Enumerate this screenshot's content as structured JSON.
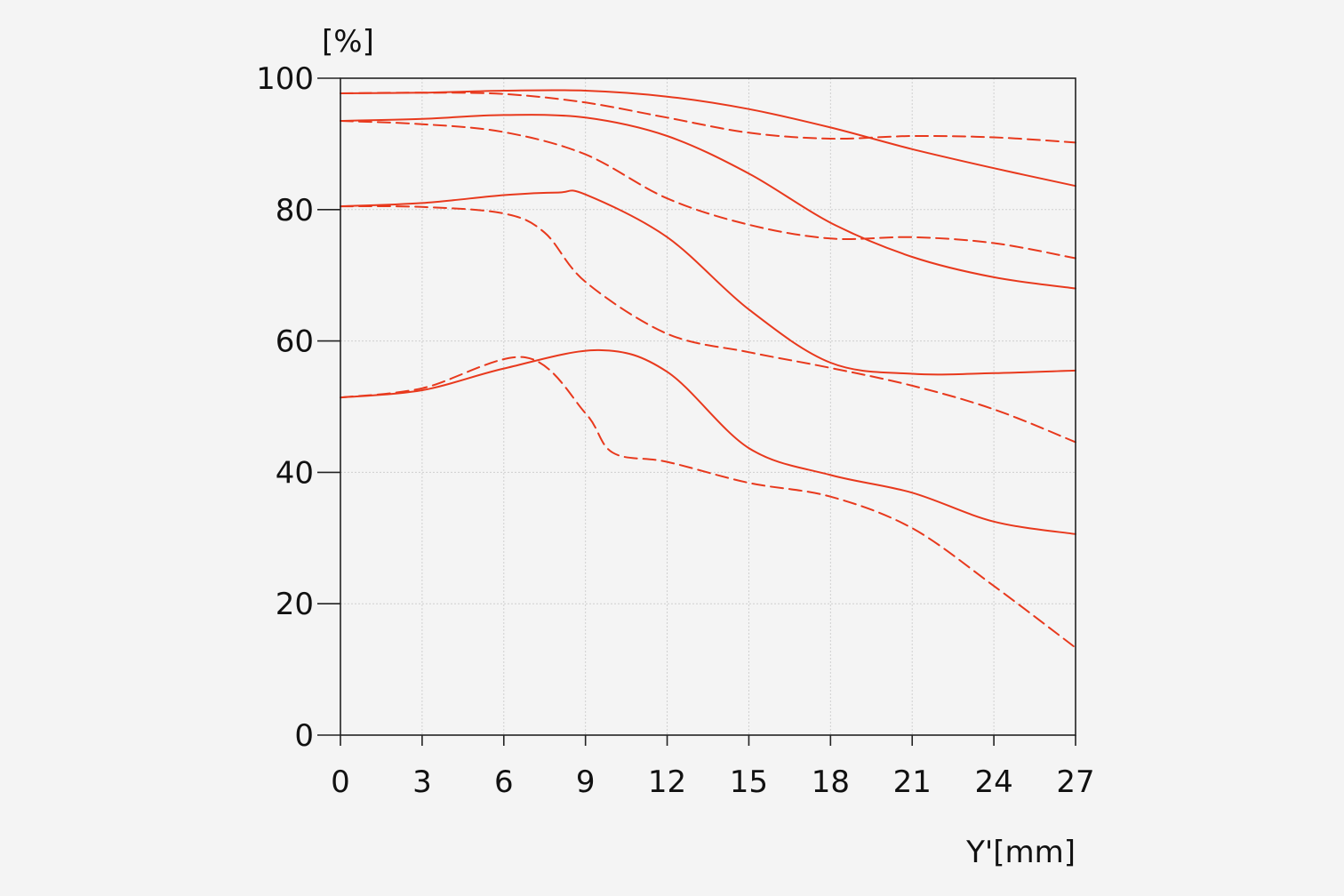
{
  "chart_data": {
    "type": "line",
    "ylabel": "[%]",
    "xlabel": "Y'[mm]",
    "xlim": [
      0,
      27
    ],
    "ylim": [
      0,
      100
    ],
    "xticks": [
      "0",
      "3",
      "6",
      "9",
      "12",
      "15",
      "18",
      "21",
      "24",
      "27"
    ],
    "yticks": [
      "0",
      "20",
      "40",
      "60",
      "80",
      "100"
    ],
    "grid": true,
    "color": "#e8391d",
    "series": [
      {
        "style": "solid",
        "x": [
          0,
          3,
          6,
          9,
          12,
          15,
          18,
          21,
          24,
          27
        ],
        "y": [
          97.7,
          97.8,
          98.1,
          98.1,
          97.2,
          95.3,
          92.5,
          89.2,
          86.3,
          83.6
        ]
      },
      {
        "style": "dashed",
        "x": [
          0,
          3,
          6,
          9,
          12,
          15,
          18,
          21,
          24,
          27
        ],
        "y": [
          97.7,
          97.8,
          97.6,
          96.3,
          94.0,
          91.7,
          90.8,
          91.2,
          91.0,
          90.2
        ]
      },
      {
        "style": "solid",
        "x": [
          0,
          3,
          6,
          9,
          12,
          15,
          18,
          21,
          24,
          27
        ],
        "y": [
          93.5,
          93.8,
          94.4,
          94.0,
          91.2,
          85.5,
          78.0,
          72.8,
          69.7,
          68.0
        ]
      },
      {
        "style": "dashed",
        "x": [
          0,
          3,
          6,
          9,
          12,
          15,
          18,
          21,
          24,
          27
        ],
        "y": [
          93.5,
          93.0,
          91.8,
          88.4,
          81.7,
          77.7,
          75.6,
          75.8,
          74.9,
          72.6
        ]
      },
      {
        "style": "solid",
        "x": [
          0,
          3,
          6,
          8,
          9,
          12,
          15,
          18,
          21,
          24,
          27
        ],
        "y": [
          80.5,
          81.0,
          82.2,
          82.6,
          82.3,
          75.8,
          64.8,
          56.7,
          55.0,
          55.1,
          55.5
        ]
      },
      {
        "style": "dashed",
        "x": [
          0,
          3,
          6,
          7.5,
          9,
          12,
          15,
          18,
          21,
          24,
          27
        ],
        "y": [
          80.5,
          80.4,
          79.4,
          76.5,
          69.0,
          61.1,
          58.3,
          55.9,
          53.2,
          49.6,
          44.6
        ]
      },
      {
        "style": "solid",
        "x": [
          0,
          3,
          6,
          9.5,
          12,
          15,
          18,
          21,
          24,
          27
        ],
        "y": [
          51.4,
          52.5,
          55.8,
          58.6,
          55.3,
          43.7,
          39.6,
          36.9,
          32.5,
          30.6
        ]
      },
      {
        "style": "dashed",
        "x": [
          0,
          3,
          6.8,
          9,
          10,
          12,
          15,
          18,
          21,
          24,
          27
        ],
        "y": [
          51.4,
          52.8,
          57.5,
          49.0,
          43.0,
          41.6,
          38.4,
          36.3,
          31.5,
          22.7,
          13.3
        ]
      }
    ]
  }
}
